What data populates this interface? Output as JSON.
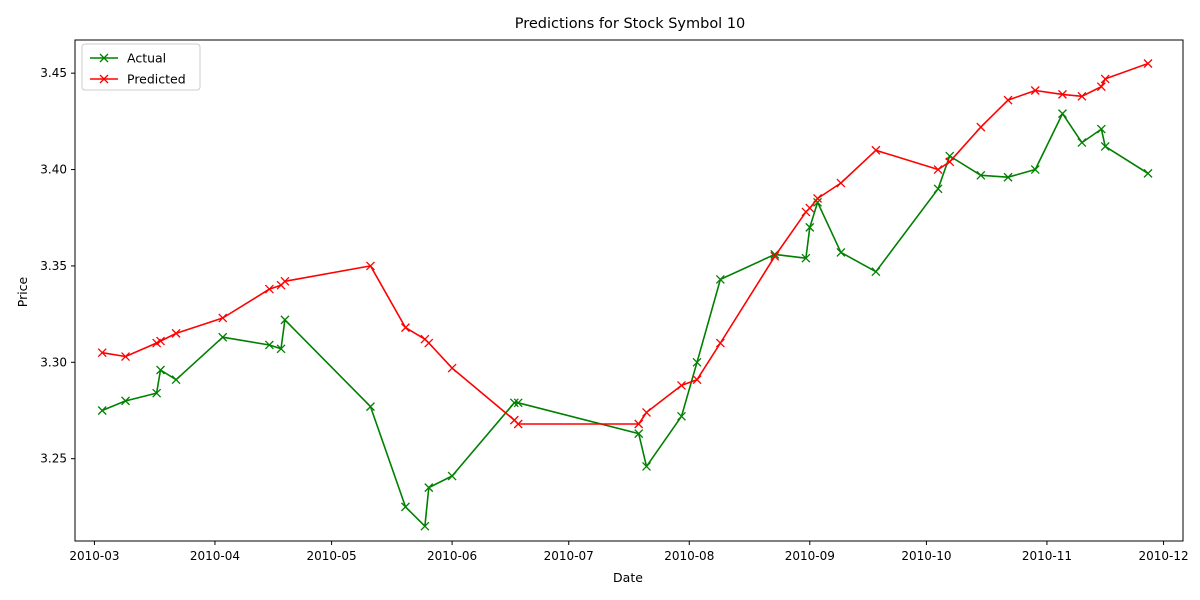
{
  "chart_data": {
    "type": "line",
    "title": "Predictions for Stock Symbol 10",
    "xlabel": "Date",
    "ylabel": "Price",
    "xlim": [
      "2010-02-24",
      "2010-12-06"
    ],
    "ylim": [
      3.2073,
      3.4672
    ],
    "x_ticks": [
      "2010-03",
      "2010-04",
      "2010-05",
      "2010-06",
      "2010-07",
      "2010-08",
      "2010-09",
      "2010-10",
      "2010-11",
      "2010-12"
    ],
    "y_ticks": [
      3.25,
      3.3,
      3.35,
      3.4,
      3.45
    ],
    "y_tick_labels": [
      "3.25",
      "3.30",
      "3.35",
      "3.40",
      "3.45"
    ],
    "grid": false,
    "legend_position": "top-left",
    "series": [
      {
        "name": "Actual",
        "color": "#008000",
        "marker": "x",
        "points": [
          [
            "2010-03-03",
            3.275
          ],
          [
            "2010-03-09",
            3.28
          ],
          [
            "2010-03-17",
            3.284
          ],
          [
            "2010-03-18",
            3.296
          ],
          [
            "2010-03-22",
            3.291
          ],
          [
            "2010-04-03",
            3.313
          ],
          [
            "2010-04-15",
            3.309
          ],
          [
            "2010-04-18",
            3.307
          ],
          [
            "2010-04-19",
            3.322
          ],
          [
            "2010-05-11",
            3.277
          ],
          [
            "2010-05-20",
            3.225
          ],
          [
            "2010-05-25",
            3.215
          ],
          [
            "2010-05-26",
            3.235
          ],
          [
            "2010-06-01",
            3.241
          ],
          [
            "2010-06-17",
            3.279
          ],
          [
            "2010-06-18",
            3.279
          ],
          [
            "2010-07-19",
            3.263
          ],
          [
            "2010-07-21",
            3.246
          ],
          [
            "2010-07-30",
            3.272
          ],
          [
            "2010-08-03",
            3.3
          ],
          [
            "2010-08-09",
            3.343
          ],
          [
            "2010-08-23",
            3.356
          ],
          [
            "2010-08-31",
            3.354
          ],
          [
            "2010-09-01",
            3.37
          ],
          [
            "2010-09-03",
            3.383
          ],
          [
            "2010-09-09",
            3.357
          ],
          [
            "2010-09-18",
            3.347
          ],
          [
            "2010-10-04",
            3.39
          ],
          [
            "2010-10-07",
            3.407
          ],
          [
            "2010-10-15",
            3.397
          ],
          [
            "2010-10-22",
            3.396
          ],
          [
            "2010-10-29",
            3.4
          ],
          [
            "2010-11-05",
            3.429
          ],
          [
            "2010-11-10",
            3.414
          ],
          [
            "2010-11-15",
            3.421
          ],
          [
            "2010-11-16",
            3.412
          ],
          [
            "2010-11-27",
            3.398
          ]
        ]
      },
      {
        "name": "Predicted",
        "color": "#ff0000",
        "marker": "x",
        "points": [
          [
            "2010-03-03",
            3.305
          ],
          [
            "2010-03-09",
            3.303
          ],
          [
            "2010-03-17",
            3.31
          ],
          [
            "2010-03-18",
            3.311
          ],
          [
            "2010-03-22",
            3.315
          ],
          [
            "2010-04-03",
            3.323
          ],
          [
            "2010-04-15",
            3.338
          ],
          [
            "2010-04-18",
            3.34
          ],
          [
            "2010-04-19",
            3.342
          ],
          [
            "2010-05-11",
            3.35
          ],
          [
            "2010-05-20",
            3.318
          ],
          [
            "2010-05-25",
            3.312
          ],
          [
            "2010-05-26",
            3.31
          ],
          [
            "2010-06-01",
            3.297
          ],
          [
            "2010-06-17",
            3.27
          ],
          [
            "2010-06-18",
            3.268
          ],
          [
            "2010-07-19",
            3.268
          ],
          [
            "2010-07-21",
            3.274
          ],
          [
            "2010-07-30",
            3.288
          ],
          [
            "2010-08-03",
            3.291
          ],
          [
            "2010-08-09",
            3.31
          ],
          [
            "2010-08-23",
            3.355
          ],
          [
            "2010-08-31",
            3.378
          ],
          [
            "2010-09-01",
            3.38
          ],
          [
            "2010-09-03",
            3.385
          ],
          [
            "2010-09-09",
            3.393
          ],
          [
            "2010-09-18",
            3.41
          ],
          [
            "2010-10-04",
            3.4
          ],
          [
            "2010-10-07",
            3.404
          ],
          [
            "2010-10-15",
            3.422
          ],
          [
            "2010-10-22",
            3.436
          ],
          [
            "2010-10-29",
            3.441
          ],
          [
            "2010-11-05",
            3.439
          ],
          [
            "2010-11-10",
            3.438
          ],
          [
            "2010-11-15",
            3.443
          ],
          [
            "2010-11-16",
            3.447
          ],
          [
            "2010-11-27",
            3.455
          ]
        ]
      }
    ]
  }
}
